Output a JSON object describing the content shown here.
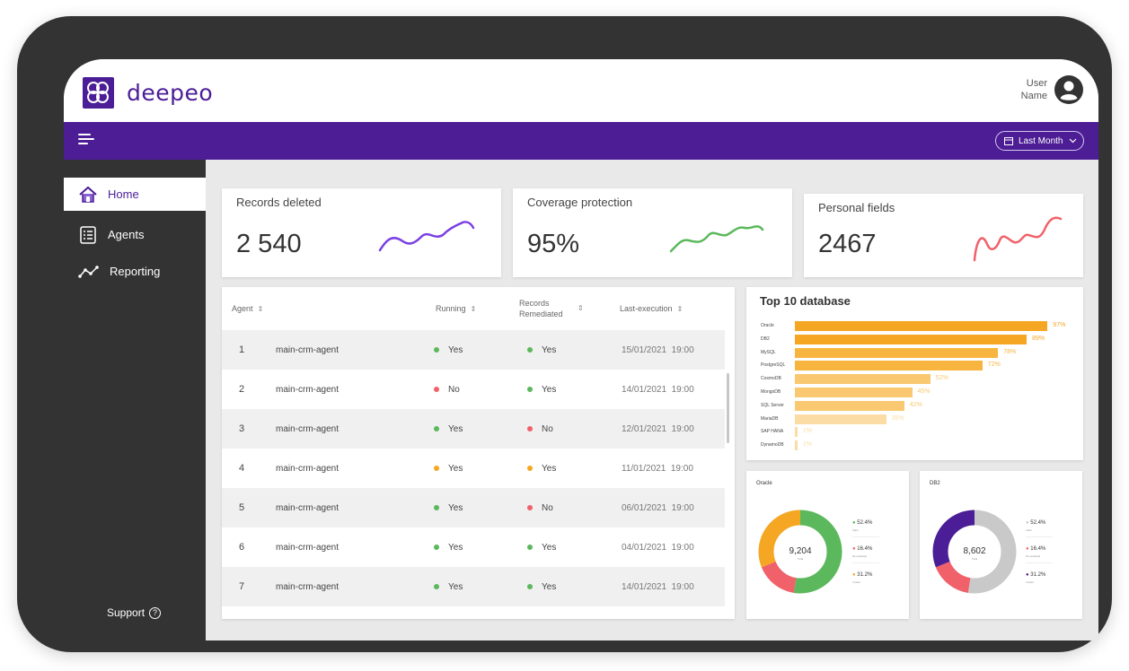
{
  "brand": {
    "name": "deepeo",
    "color": "#4b1d96"
  },
  "user": {
    "line1": "User",
    "line2": "Name"
  },
  "toolbar": {
    "date_filter": "Last Month"
  },
  "sidebar": {
    "items": [
      {
        "label": "Home",
        "icon": "home-icon",
        "active": true
      },
      {
        "label": "Agents",
        "icon": "list-icon",
        "active": false
      },
      {
        "label": "Reporting",
        "icon": "chart-line-icon",
        "active": false
      }
    ],
    "support": "Support"
  },
  "kpis": [
    {
      "label": "Records deleted",
      "value": "2 540",
      "color": "#7b3fe4"
    },
    {
      "label": "Coverage protection",
      "value": "95%",
      "color": "#5cb85c"
    },
    {
      "label": "Personal fields",
      "value": "2467",
      "color": "#f0616a"
    }
  ],
  "table": {
    "headers": {
      "agent": "Agent",
      "running": "Running",
      "records": "Records Remediated",
      "last": "Last-execution"
    },
    "rows": [
      {
        "n": "1",
        "agent": "main-crm-agent",
        "running": "Yes",
        "running_color": "#5cb85c",
        "records": "Yes",
        "records_color": "#5cb85c",
        "last": "15/01/2021  19:00"
      },
      {
        "n": "2",
        "agent": "main-crm-agent",
        "running": "No",
        "running_color": "#f0616a",
        "records": "Yes",
        "records_color": "#5cb85c",
        "last": "14/01/2021  19:00"
      },
      {
        "n": "3",
        "agent": "main-crm-agent",
        "running": "Yes",
        "running_color": "#5cb85c",
        "records": "No",
        "records_color": "#f0616a",
        "last": "12/01/2021  19:00"
      },
      {
        "n": "4",
        "agent": "main-crm-agent",
        "running": "Yes",
        "running_color": "#f5a623",
        "records": "Yes",
        "records_color": "#f5a623",
        "last": "11/01/2021  19:00"
      },
      {
        "n": "5",
        "agent": "main-crm-agent",
        "running": "Yes",
        "running_color": "#5cb85c",
        "records": "No",
        "records_color": "#f0616a",
        "last": "06/01/2021  19:00"
      },
      {
        "n": "6",
        "agent": "main-crm-agent",
        "running": "Yes",
        "running_color": "#5cb85c",
        "records": "Yes",
        "records_color": "#5cb85c",
        "last": "04/01/2021  19:00"
      },
      {
        "n": "7",
        "agent": "main-crm-agent",
        "running": "Yes",
        "running_color": "#5cb85c",
        "records": "Yes",
        "records_color": "#5cb85c",
        "last": "14/01/2021  19:00"
      }
    ]
  },
  "chart_data": [
    {
      "type": "bar",
      "title": "Top 10 database",
      "categories": [
        "Oracle",
        "DB2",
        "MySQL",
        "PostgreSQL",
        "CosmoDB",
        "MongoDB",
        "SQL Server",
        "MariaDB",
        "SAP HANA",
        "DynamoDB"
      ],
      "values": [
        97,
        89,
        78,
        72,
        52,
        45,
        42,
        35,
        1,
        1
      ],
      "value_labels": [
        "97%",
        "89%",
        "78%",
        "72%",
        "52%",
        "45%",
        "42%",
        "35%",
        "1%",
        "1%"
      ],
      "colors": [
        "#f5a623",
        "#f5a623",
        "#f7b53f",
        "#f7b53f",
        "#f9c870",
        "#f9c870",
        "#f9c870",
        "#fbdca4",
        "#fbdca4",
        "#fbdca4"
      ]
    },
    {
      "type": "pie",
      "title": "Oracle",
      "center_value": "9,204",
      "center_sub": "Total",
      "slices": [
        {
          "label": "Valid",
          "value": 52.4,
          "display": "52.4%",
          "color": "#5cb85c"
        },
        {
          "label": "Remediated",
          "value": 16.4,
          "display": "16.4%",
          "color": "#f0616a"
        },
        {
          "label": "Invalid",
          "value": 31.2,
          "display": "31.2%",
          "color": "#f5a623"
        }
      ]
    },
    {
      "type": "pie",
      "title": "DB2",
      "center_value": "8,602",
      "center_sub": "Total",
      "slices": [
        {
          "label": "Valid",
          "value": 52.4,
          "display": "52.4%",
          "color": "#c9c9c9"
        },
        {
          "label": "Remediated",
          "value": 16.4,
          "display": "16.4%",
          "color": "#f0616a"
        },
        {
          "label": "Invalid",
          "value": 31.2,
          "display": "31.2%",
          "color": "#4b1d96"
        }
      ]
    }
  ]
}
